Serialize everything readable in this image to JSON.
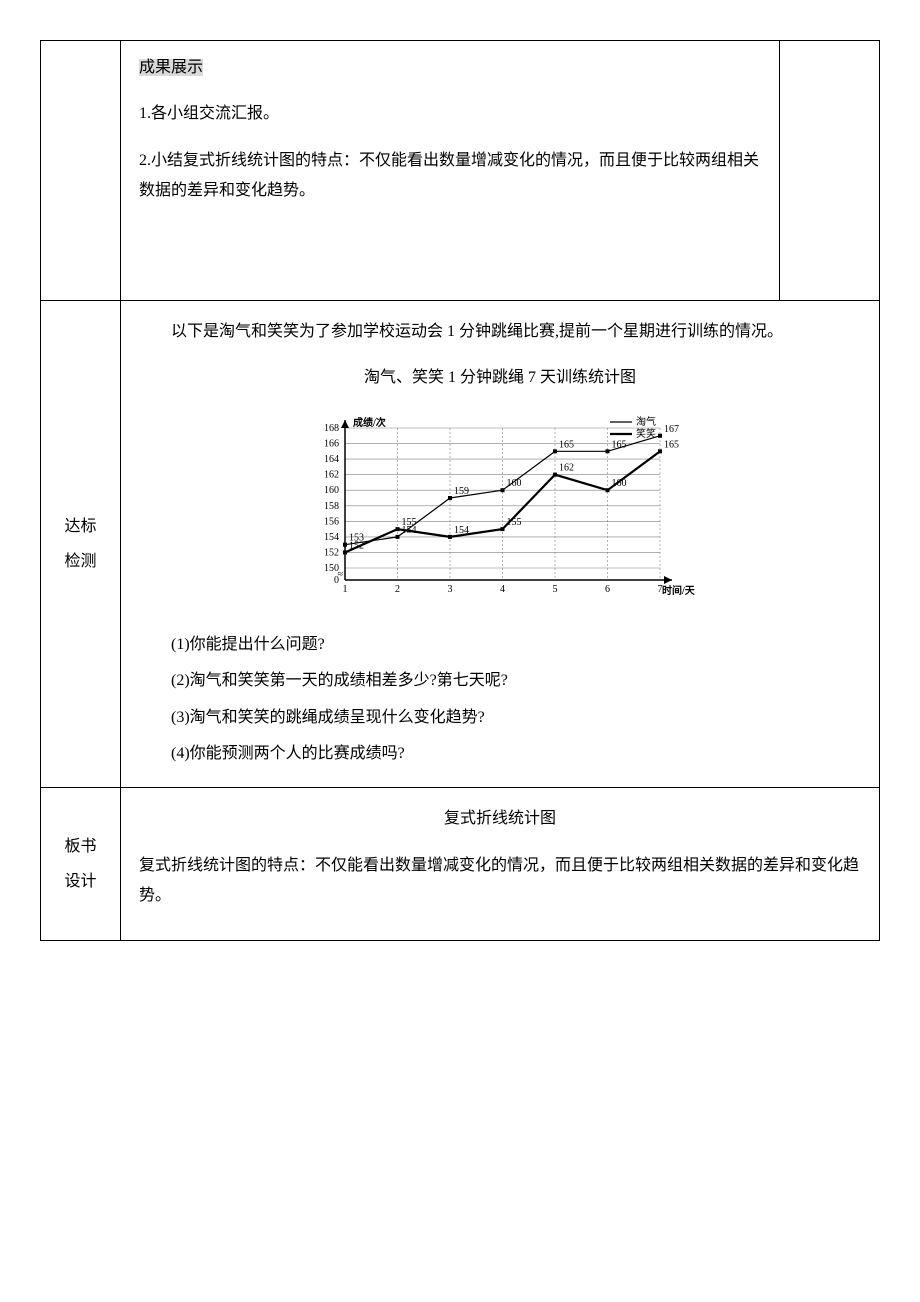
{
  "row1": {
    "heading": "成果展示",
    "p1": "1.各小组交流汇报。",
    "p2": "2.小结复式折线统计图的特点：不仅能看出数量增减变化的情况，而且便于比较两组相关数据的差异和变化趋势。"
  },
  "row2": {
    "label_line1": "达标",
    "label_line2": "检测",
    "intro": "以下是淘气和笑笑为了参加学校运动会 1 分钟跳绳比赛,提前一个星期进行训练的情况。",
    "chart_caption": "淘气、笑笑 1 分钟跳绳 7 天训练统计图",
    "chart": {
      "y_label": "成绩/次",
      "x_label": "时间/天",
      "legend": {
        "taoqi": "淘气",
        "xiaoxiao": "笑笑"
      },
      "x_ticks": [
        "1",
        "2",
        "3",
        "4",
        "5",
        "6",
        "7"
      ],
      "y_ticks": [
        "0",
        "150",
        "152",
        "154",
        "156",
        "158",
        "160",
        "162",
        "164",
        "166",
        "168"
      ],
      "series": {
        "taoqi": [
          153,
          154,
          159,
          160,
          165,
          165,
          167
        ],
        "xiaoxiao": [
          152,
          155,
          154,
          155,
          162,
          160,
          165
        ]
      },
      "point_labels": {
        "taoqi": [
          "153",
          "154",
          "159",
          "160",
          "165",
          "165",
          "167"
        ],
        "xiaoxiao": [
          "152",
          "155",
          "154",
          "155",
          "162",
          "160",
          "165"
        ]
      },
      "colors": {
        "axis": "#000000",
        "grid": "#808080",
        "taoqi_line": "#000000",
        "xiaoxiao_line": "#000000",
        "background": "#ffffff"
      },
      "styles": {
        "taoqi_width": 1.2,
        "xiaoxiao_width": 2.2,
        "grid_dash": "2,2"
      }
    },
    "q1": "(1)你能提出什么问题?",
    "q2": "(2)淘气和笑笑第一天的成绩相差多少?第七天呢?",
    "q3": "(3)淘气和笑笑的跳绳成绩呈现什么变化趋势?",
    "q4": "(4)你能预测两个人的比赛成绩吗?"
  },
  "row3": {
    "label_line1": "板书",
    "label_line2": "设计",
    "title": "复式折线统计图",
    "body": "复式折线统计图的特点：不仅能看出数量增减变化的情况，而且便于比较两组相关数据的差异和变化趋势。"
  }
}
